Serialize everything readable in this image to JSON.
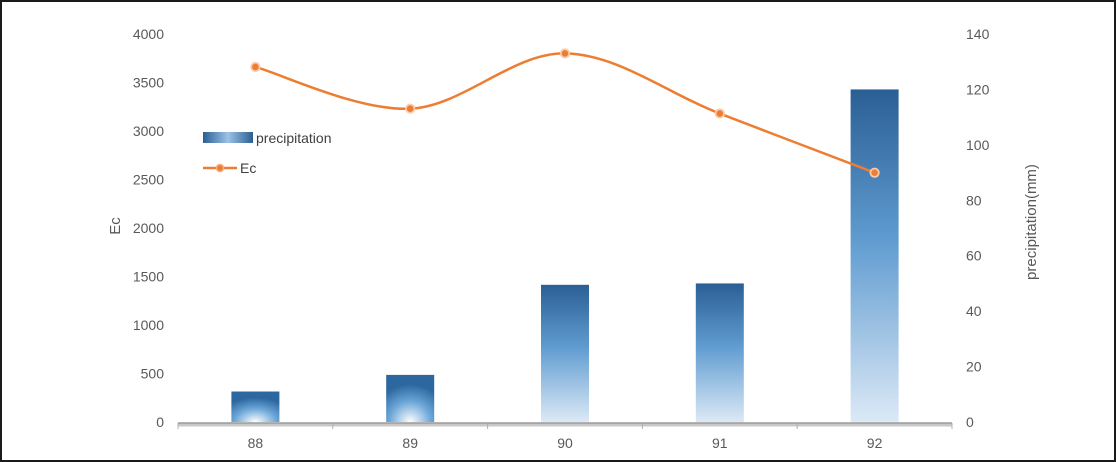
{
  "chart_data": {
    "type": "bar",
    "categories": [
      "88",
      "89",
      "90",
      "91",
      "92"
    ],
    "series": [
      {
        "name": "precipitation",
        "type": "bar",
        "axis": "right",
        "values": [
          11,
          17,
          49.5,
          50,
          120
        ],
        "color": "#2e6ca4"
      },
      {
        "name": "Ec",
        "type": "line",
        "axis": "left",
        "smooth": true,
        "values": [
          3660,
          3230,
          3800,
          3180,
          2570
        ],
        "color": "#ed7d31"
      }
    ],
    "ylabel": "Ec",
    "y2label": "precipitation(mm)",
    "ylim": [
      0,
      4000
    ],
    "y2lim": [
      0,
      140
    ],
    "yticks": [
      "0",
      "500",
      "1000",
      "1500",
      "2000",
      "2500",
      "3000",
      "3500",
      "4000"
    ],
    "y2ticks": [
      "0",
      "20",
      "40",
      "60",
      "80",
      "100",
      "120",
      "140"
    ],
    "grid": false,
    "legend": "left"
  }
}
